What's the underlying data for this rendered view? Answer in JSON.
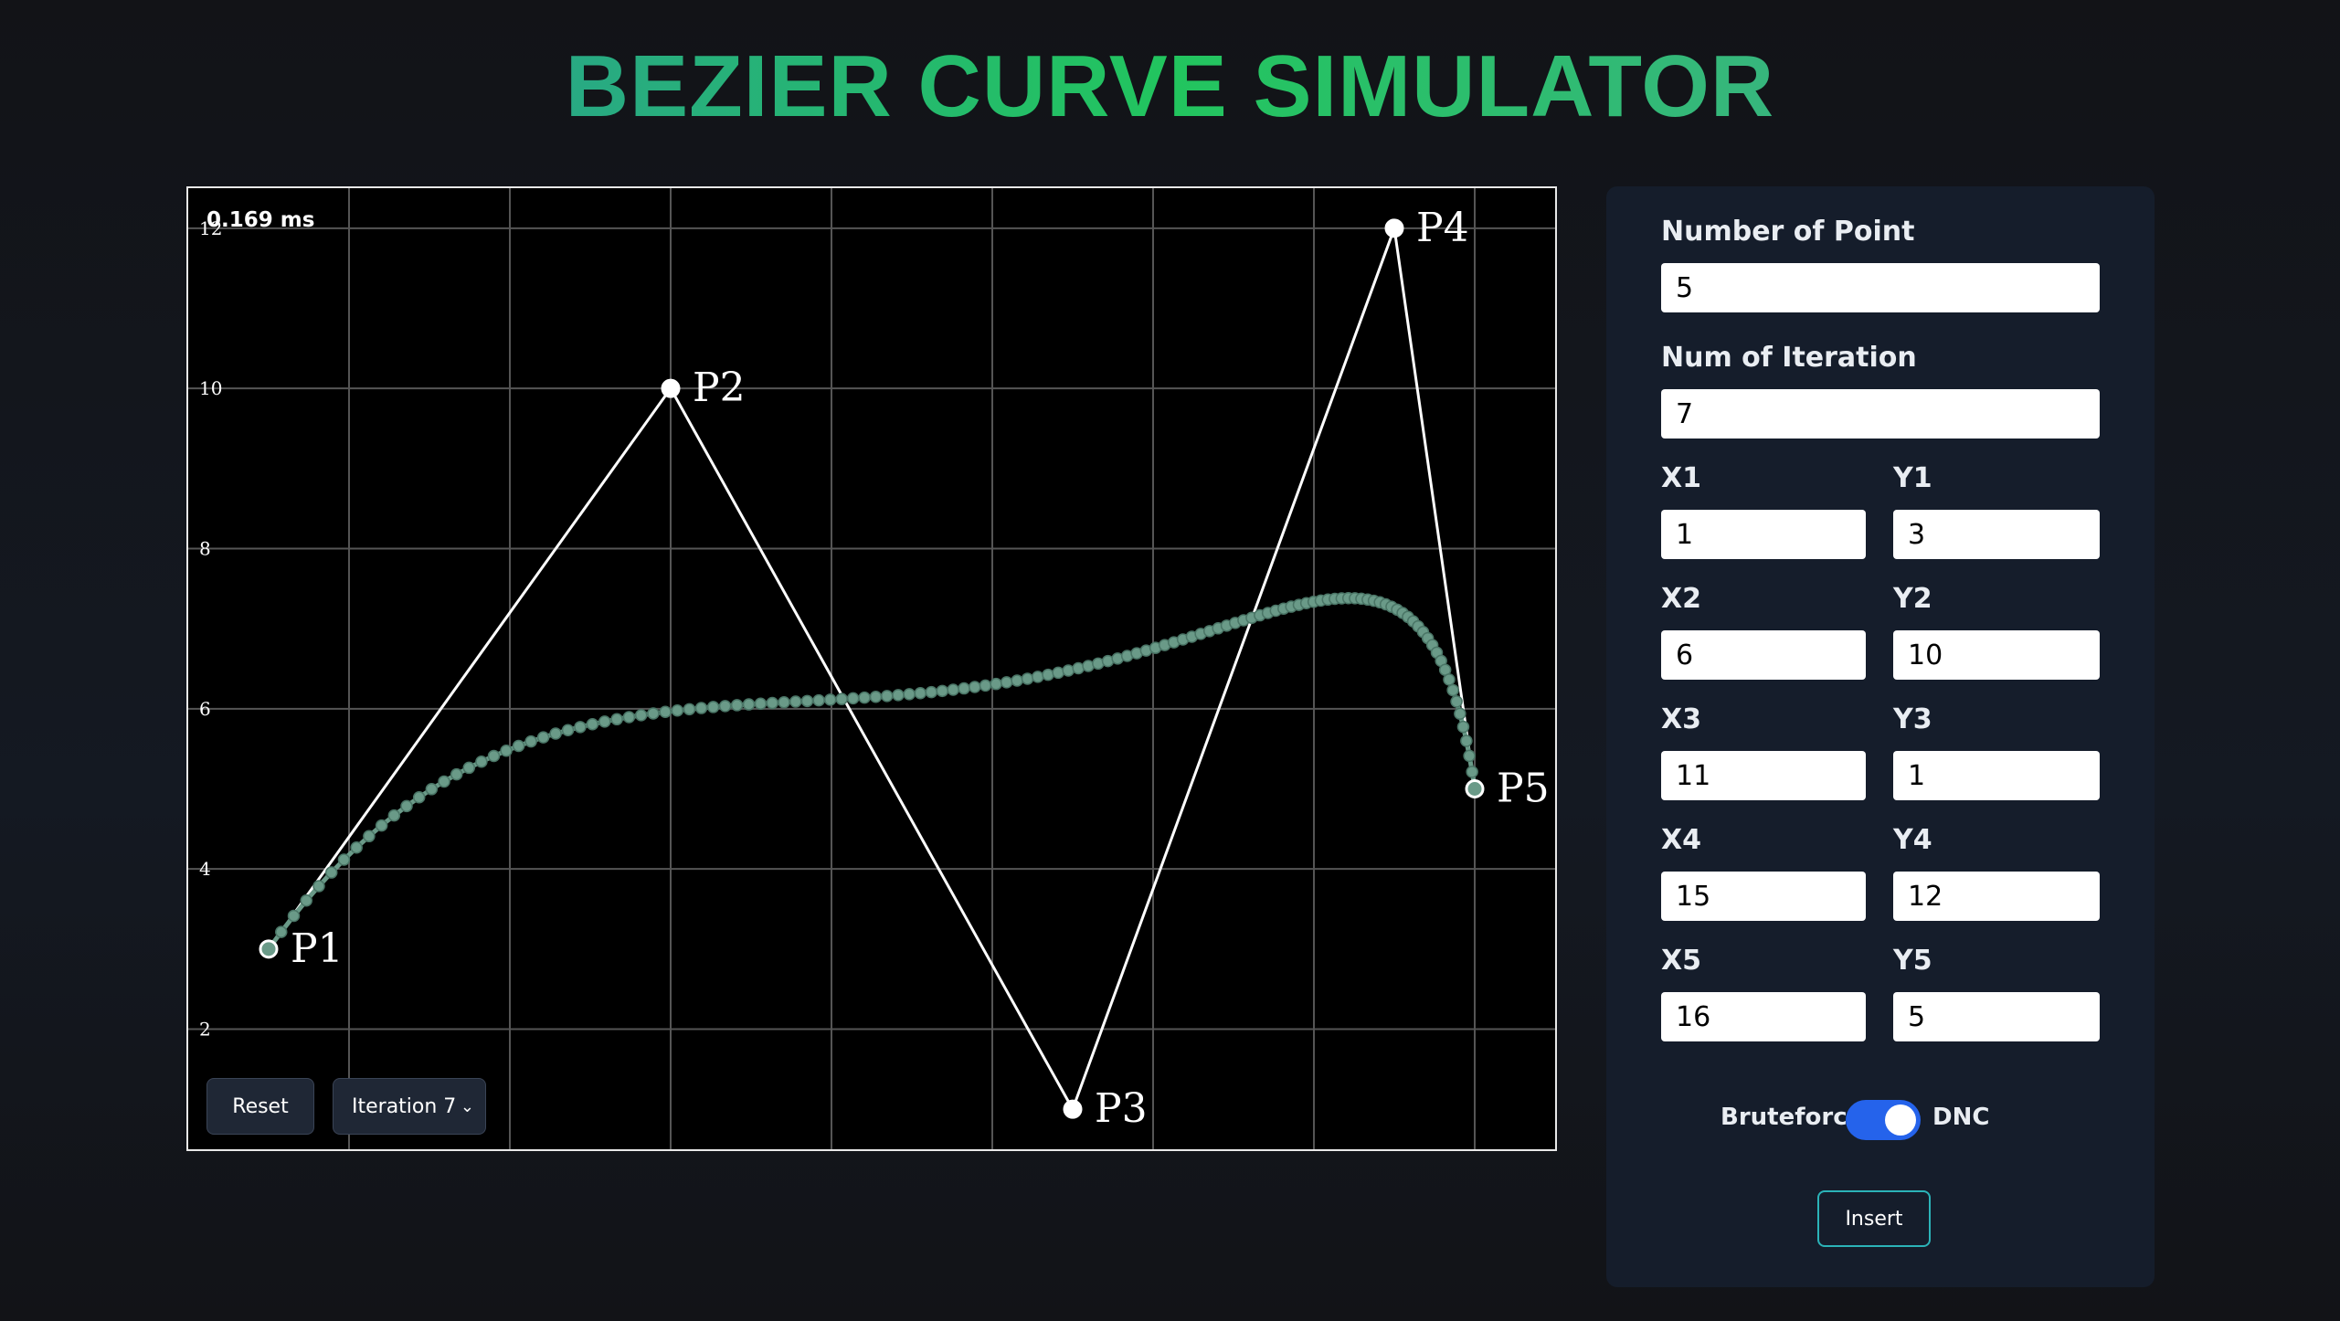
{
  "header": {
    "title": "BEZIER CURVE SIMULATOR"
  },
  "chart_data": {
    "type": "bezier",
    "annotation": "0.169 ms",
    "points": {
      "names": [
        "P1",
        "P2",
        "P3",
        "P4",
        "P5"
      ],
      "x": [
        1,
        6,
        11,
        15,
        16
      ],
      "y": [
        3,
        10,
        1,
        12,
        5
      ]
    },
    "xlim": [
      0,
      17
    ],
    "ylim": [
      0.5,
      12.5
    ],
    "xticks": [
      2,
      4,
      6,
      8,
      10,
      12,
      14,
      16
    ],
    "yticks": [
      2,
      4,
      6,
      8,
      10,
      12
    ],
    "grid": true,
    "control_color": "#ffffff",
    "curve_color": "#6a9a88"
  },
  "controls": {
    "reset": "Reset",
    "iteration_select": "Iteration 7"
  },
  "form": {
    "num_points_label": "Number of Point",
    "num_points": 5,
    "iterations_label": "Num of Iteration",
    "iterations": 7,
    "coord_labels": {
      "x": [
        "X1",
        "X2",
        "X3",
        "X4",
        "X5"
      ],
      "y": [
        "Y1",
        "Y2",
        "Y3",
        "Y4",
        "Y5"
      ]
    },
    "toggle": {
      "left": "Bruteforce",
      "right": "DNC",
      "on": true
    },
    "insert": "Insert"
  }
}
